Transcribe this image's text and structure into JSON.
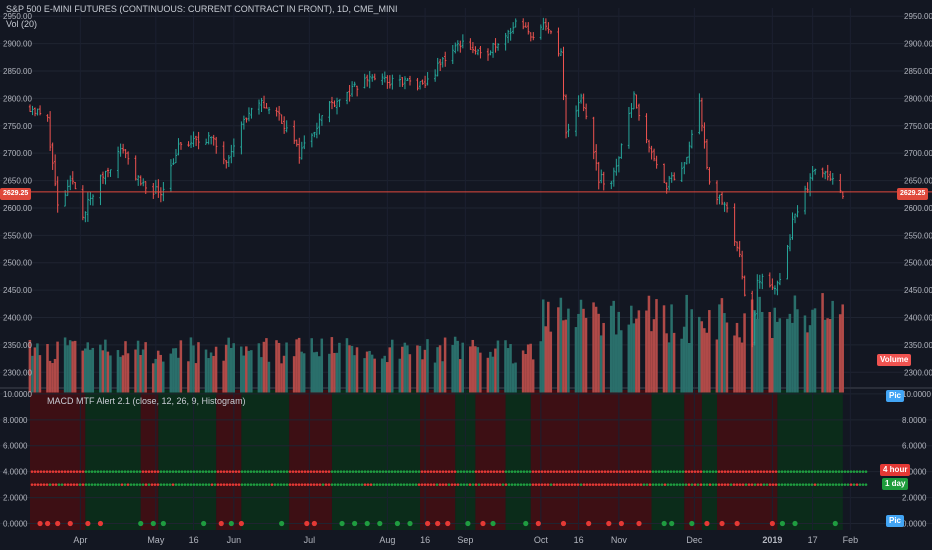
{
  "header": {
    "title": "S&P 500 E-MINI FUTURES (CONTINUOUS: CURRENT CONTRACT IN FRONT), 1D, CME_MINI",
    "vol_label": "Vol (20)",
    "indicator_label": "MACD MTF Alert 2.1 (close, 12, 26, 9, Histogram)"
  },
  "badges": {
    "price": "2629.25",
    "volume": "Volume",
    "h4": "4 hour",
    "d1": "1 day",
    "pic_top": "Pic",
    "pic_bottom": "Pic"
  },
  "colors": {
    "background": "#131722",
    "up": "#26a69a",
    "up_bar": "#2f8f5f",
    "down": "#ef5350",
    "vol_up": "#2a6f6b",
    "vol_down": "#b04a48",
    "bull_zone": "#0b2c1a",
    "bear_zone": "#3d0f14",
    "price_line": "#e0493c",
    "badge_blue": "#42a5f5",
    "badge_green": "#1e9c3c",
    "badge_red": "#e53935"
  },
  "chart_data": [
    {
      "type": "candlestick",
      "title": "S&P 500 E-MINI FUTURES (CONTINUOUS: CURRENT CONTRACT IN FRONT), 1D, CME_MINI",
      "y_ticks": [
        2300,
        2350,
        2400,
        2450,
        2500,
        2550,
        2600,
        2650,
        2700,
        2750,
        2800,
        2850,
        2900,
        2950
      ],
      "y_tick_labels": [
        "2300.00",
        "2350.00",
        "2400.00",
        "2450.00",
        "2500.00",
        "2550.00",
        "2600.00",
        "2650.00",
        "2700.00",
        "2750.00",
        "2800.00",
        "2850.00",
        "2900.00",
        "2950.00"
      ],
      "ylim": [
        2275,
        2965
      ],
      "last_price": 2629.25,
      "x_tick_labels": [
        "Apr",
        "May",
        "16",
        "Jun",
        "Jul",
        "Aug",
        "16",
        "Sep",
        "Oct",
        "16",
        "Nov",
        "Dec",
        "2019",
        "17",
        "Feb"
      ],
      "x_ticks": [
        "2018-04-01",
        "2018-05-01",
        "2018-05-16",
        "2018-06-01",
        "2018-07-01",
        "2018-08-01",
        "2018-08-16",
        "2018-09-01",
        "2018-10-01",
        "2018-10-16",
        "2018-11-01",
        "2018-12-01",
        "2019-01-01",
        "2019-01-17",
        "2019-02-01"
      ],
      "xlim": [
        "2018-03-12",
        "2019-02-08"
      ],
      "close_path": [
        [
          "2018-03-12",
          2785
        ],
        [
          "2018-03-19",
          2760
        ],
        [
          "2018-03-23",
          2600
        ],
        [
          "2018-03-29",
          2650
        ],
        [
          "2018-04-02",
          2590
        ],
        [
          "2018-04-10",
          2660
        ],
        [
          "2018-04-18",
          2710
        ],
        [
          "2018-04-25",
          2640
        ],
        [
          "2018-05-03",
          2630
        ],
        [
          "2018-05-10",
          2710
        ],
        [
          "2018-05-22",
          2730
        ],
        [
          "2018-05-29",
          2690
        ],
        [
          "2018-06-05",
          2760
        ],
        [
          "2018-06-12",
          2790
        ],
        [
          "2018-06-19",
          2770
        ],
        [
          "2018-06-27",
          2700
        ],
        [
          "2018-07-09",
          2790
        ],
        [
          "2018-07-17",
          2810
        ],
        [
          "2018-07-25",
          2840
        ],
        [
          "2018-08-02",
          2830
        ],
        [
          "2018-08-10",
          2830
        ],
        [
          "2018-08-15",
          2820
        ],
        [
          "2018-08-24",
          2875
        ],
        [
          "2018-08-31",
          2905
        ],
        [
          "2018-09-07",
          2875
        ],
        [
          "2018-09-14",
          2905
        ],
        [
          "2018-09-21",
          2935
        ],
        [
          "2018-09-28",
          2915
        ],
        [
          "2018-10-03",
          2935
        ],
        [
          "2018-10-09",
          2880
        ],
        [
          "2018-10-11",
          2740
        ],
        [
          "2018-10-17",
          2805
        ],
        [
          "2018-10-24",
          2655
        ],
        [
          "2018-10-29",
          2640
        ],
        [
          "2018-11-07",
          2805
        ],
        [
          "2018-11-12",
          2730
        ],
        [
          "2018-11-20",
          2640
        ],
        [
          "2018-11-27",
          2680
        ],
        [
          "2018-12-03",
          2790
        ],
        [
          "2018-12-07",
          2640
        ],
        [
          "2018-12-14",
          2600
        ],
        [
          "2018-12-19",
          2510
        ],
        [
          "2018-12-24",
          2350
        ],
        [
          "2018-12-26",
          2470
        ],
        [
          "2019-01-03",
          2455
        ],
        [
          "2019-01-10",
          2590
        ],
        [
          "2019-01-18",
          2670
        ],
        [
          "2019-01-25",
          2660
        ],
        [
          "2019-01-29",
          2629
        ]
      ],
      "volume_axis": {
        "ticks": [
          2300,
          2350,
          2400
        ],
        "note": "volume panel shares the price scale"
      }
    },
    {
      "type": "scatter",
      "title": "MACD MTF Alert 2.1 (close, 12, 26, 9, Histogram)",
      "y_ticks": [
        0,
        2,
        4,
        6,
        8,
        10
      ],
      "y_tick_labels": [
        "0.0000",
        "2.0000",
        "4.0000",
        "6.0000",
        "8.0000",
        "10.0000"
      ],
      "ylim": [
        -0.5,
        10.3
      ],
      "series": [
        {
          "name": "4 hour",
          "value": 4,
          "color_rule": "red = bearish, green = bullish"
        },
        {
          "name": "1 day",
          "value": 3,
          "color_rule": "red = bearish, green = bullish"
        }
      ],
      "zones": [
        [
          "2018-03-12",
          "2018-04-03",
          "bear"
        ],
        [
          "2018-04-03",
          "2018-04-25",
          "bull"
        ],
        [
          "2018-04-25",
          "2018-05-02",
          "bear"
        ],
        [
          "2018-05-02",
          "2018-05-25",
          "bull"
        ],
        [
          "2018-05-25",
          "2018-06-04",
          "bear"
        ],
        [
          "2018-06-04",
          "2018-06-23",
          "bull"
        ],
        [
          "2018-06-23",
          "2018-07-10",
          "bear"
        ],
        [
          "2018-07-10",
          "2018-08-14",
          "bull"
        ],
        [
          "2018-08-14",
          "2018-08-28",
          "bear"
        ],
        [
          "2018-08-28",
          "2018-09-05",
          "bull"
        ],
        [
          "2018-09-05",
          "2018-09-17",
          "bear"
        ],
        [
          "2018-09-17",
          "2018-09-27",
          "bull"
        ],
        [
          "2018-09-27",
          "2018-11-14",
          "bear"
        ],
        [
          "2018-11-14",
          "2018-11-27",
          "bull"
        ],
        [
          "2018-11-27",
          "2018-12-04",
          "bear"
        ],
        [
          "2018-12-04",
          "2018-12-10",
          "bull"
        ],
        [
          "2018-12-10",
          "2019-01-03",
          "bear"
        ],
        [
          "2019-01-03",
          "2019-01-29",
          "bull"
        ]
      ],
      "signals": [
        [
          "2018-03-16",
          "bear"
        ],
        [
          "2018-03-19",
          "bear"
        ],
        [
          "2018-03-23",
          "bear"
        ],
        [
          "2018-03-28",
          "bear"
        ],
        [
          "2018-04-04",
          "bear"
        ],
        [
          "2018-04-09",
          "bear"
        ],
        [
          "2018-04-25",
          "bull"
        ],
        [
          "2018-04-30",
          "bull"
        ],
        [
          "2018-05-04",
          "bull"
        ],
        [
          "2018-05-20",
          "bull"
        ],
        [
          "2018-05-27",
          "bear"
        ],
        [
          "2018-05-31",
          "bull"
        ],
        [
          "2018-06-04",
          "bear"
        ],
        [
          "2018-06-20",
          "bull"
        ],
        [
          "2018-06-30",
          "bear"
        ],
        [
          "2018-07-03",
          "bear"
        ],
        [
          "2018-07-14",
          "bull"
        ],
        [
          "2018-07-19",
          "bull"
        ],
        [
          "2018-07-24",
          "bull"
        ],
        [
          "2018-07-29",
          "bull"
        ],
        [
          "2018-08-05",
          "bull"
        ],
        [
          "2018-08-10",
          "bull"
        ],
        [
          "2018-08-17",
          "bear"
        ],
        [
          "2018-08-21",
          "bear"
        ],
        [
          "2018-08-25",
          "bear"
        ],
        [
          "2018-09-02",
          "bull"
        ],
        [
          "2018-09-08",
          "bear"
        ],
        [
          "2018-09-12",
          "bull"
        ],
        [
          "2018-09-25",
          "bull"
        ],
        [
          "2018-09-30",
          "bear"
        ],
        [
          "2018-10-10",
          "bear"
        ],
        [
          "2018-10-20",
          "bear"
        ],
        [
          "2018-10-28",
          "bear"
        ],
        [
          "2018-11-02",
          "bear"
        ],
        [
          "2018-11-09",
          "bear"
        ],
        [
          "2018-11-19",
          "bull"
        ],
        [
          "2018-11-22",
          "bull"
        ],
        [
          "2018-11-30",
          "bull"
        ],
        [
          "2018-12-06",
          "bear"
        ],
        [
          "2018-12-12",
          "bear"
        ],
        [
          "2018-12-18",
          "bear"
        ],
        [
          "2019-01-01",
          "bear"
        ],
        [
          "2019-01-05",
          "bull"
        ],
        [
          "2019-01-10",
          "bull"
        ],
        [
          "2019-01-26",
          "bull"
        ]
      ]
    }
  ]
}
